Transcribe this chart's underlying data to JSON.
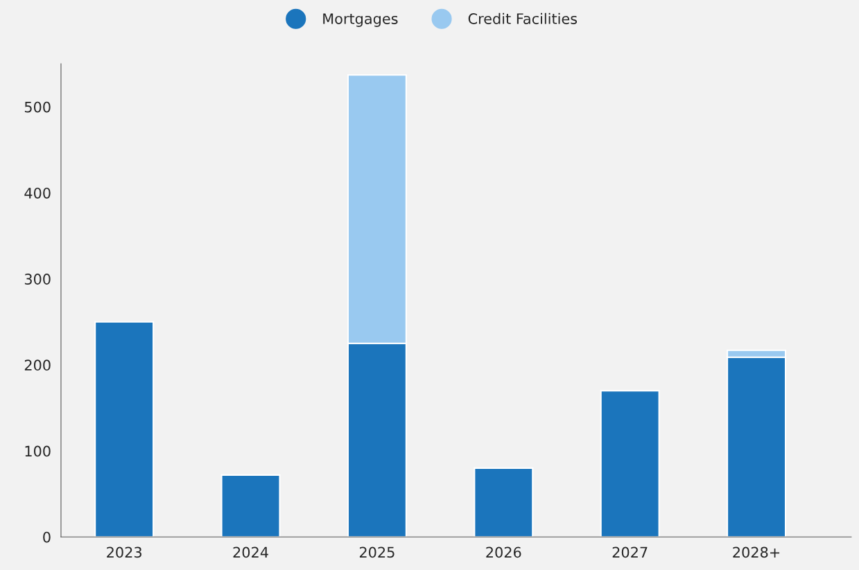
{
  "chart_data": {
    "type": "bar",
    "stacked": true,
    "categories": [
      "2023",
      "2024",
      "2025",
      "2026",
      "2027",
      "2028+"
    ],
    "series": [
      {
        "name": "Mortgages",
        "color": "#1b75bc",
        "values": [
          250,
          72,
          225,
          80,
          170,
          209
        ]
      },
      {
        "name": "Credit Facilities",
        "color": "#99c9f0",
        "values": [
          null,
          null,
          312,
          null,
          null,
          8
        ]
      }
    ],
    "ylim": [
      0,
      550
    ],
    "yticks": [
      0,
      100,
      200,
      300,
      400,
      500
    ],
    "grid": false,
    "legend": "top"
  }
}
